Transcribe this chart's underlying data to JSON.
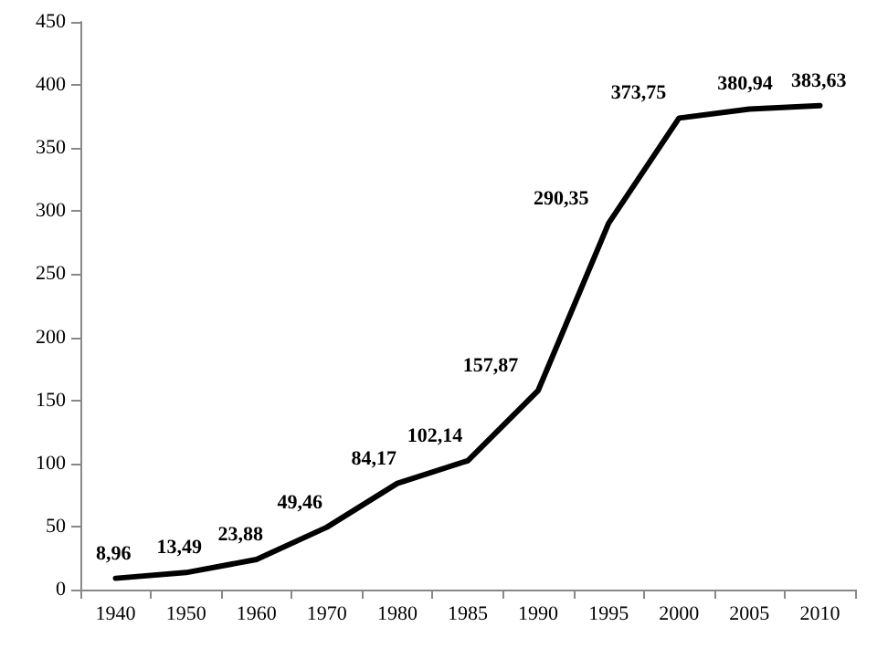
{
  "chart_data": {
    "type": "line",
    "categories": [
      "1940",
      "1950",
      "1960",
      "1970",
      "1980",
      "1985",
      "1990",
      "1995",
      "2000",
      "2005",
      "2010"
    ],
    "values": [
      8.96,
      13.49,
      23.88,
      49.46,
      84.17,
      102.14,
      157.87,
      290.35,
      373.75,
      380.94,
      383.63
    ],
    "value_labels": [
      "8,96",
      "13,49",
      "23,88",
      "49,46",
      "84,17",
      "102,14",
      "157,87",
      "290,35",
      "373,75",
      "380,94",
      "383,63"
    ],
    "color": "#000000",
    "ylim": [
      0,
      450
    ],
    "yticks": [
      0,
      50,
      100,
      150,
      200,
      250,
      300,
      350,
      400,
      450
    ],
    "grid": false,
    "marker": "none",
    "line_style": "solid"
  }
}
